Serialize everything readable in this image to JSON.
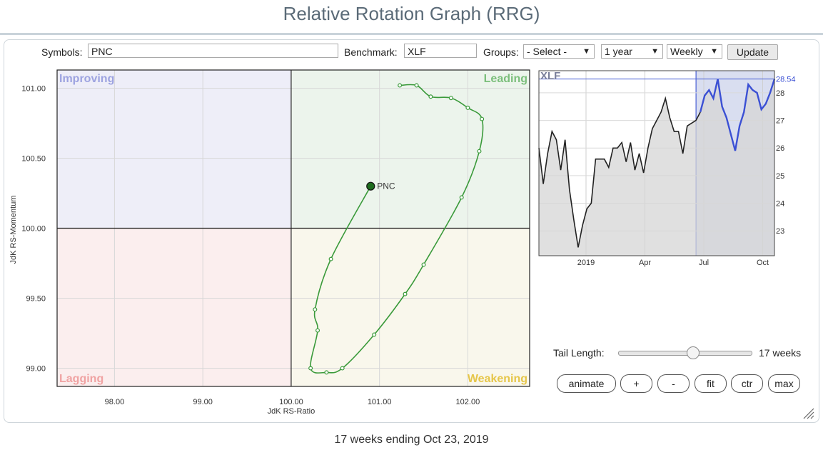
{
  "page": {
    "title": "Relative Rotation Graph (RRG)",
    "footer": "17 weeks ending Oct 23, 2019"
  },
  "controls": {
    "symbols_label": "Symbols:",
    "symbols_value": "PNC",
    "benchmark_label": "Benchmark:",
    "benchmark_value": "XLF",
    "groups_label": "Groups:",
    "groups_value": "- Select -",
    "period_value": "1 year",
    "frequency_value": "Weekly",
    "update_label": "Update"
  },
  "rrg": {
    "quadrants": {
      "improving": "Improving",
      "leading": "Leading",
      "lagging": "Lagging",
      "weakening": "Weakening"
    },
    "quadrant_colors": {
      "improving": "#eeeef8",
      "leading": "#ecf4ec",
      "lagging": "#fbeeee",
      "weakening": "#f9f7ec"
    },
    "quadrant_label_colors": {
      "improving": "#9da3e0",
      "leading": "#7cbf7c",
      "lagging": "#f0a3a3",
      "weakening": "#e6c64a"
    },
    "tail_color": "#3a9a3a",
    "xlabel": "JdK RS-Ratio",
    "ylabel": "JdK RS-Momentum",
    "x_ticks": [
      "98.00",
      "99.00",
      "100.00",
      "101.00",
      "102.00"
    ],
    "y_ticks": [
      "101.00",
      "100.50",
      "100.00",
      "99.50",
      "99.00"
    ],
    "series_label": "PNC"
  },
  "mini_chart": {
    "symbol": "XLF",
    "last_value": "28.54",
    "y_ticks": [
      "28",
      "27",
      "26",
      "25",
      "24",
      "23"
    ],
    "x_ticks": [
      "2019",
      "Apr",
      "Jul",
      "Oct"
    ]
  },
  "tail": {
    "label": "Tail Length:",
    "value_text": "17 weeks",
    "level_fraction": 0.56
  },
  "buttons": {
    "animate": "animate",
    "plus": "+",
    "minus": "-",
    "fit": "fit",
    "ctr": "ctr",
    "max": "max"
  },
  "chart_data": [
    {
      "type": "scatter",
      "title": "",
      "xlabel": "JdK RS-Ratio",
      "ylabel": "JdK RS-Momentum",
      "xlim": [
        97.35,
        102.7
      ],
      "ylim": [
        98.87,
        101.13
      ],
      "series": [
        {
          "name": "PNC",
          "x": [
            101.23,
            101.42,
            101.58,
            101.81,
            102.0,
            102.16,
            102.13,
            101.93,
            101.5,
            101.29,
            100.94,
            100.58,
            100.4,
            100.22,
            100.3,
            100.27,
            100.45,
            100.9
          ],
          "y": [
            101.02,
            101.02,
            100.94,
            100.93,
            100.86,
            100.78,
            100.55,
            100.22,
            99.74,
            99.53,
            99.24,
            99.0,
            98.97,
            99.0,
            99.27,
            99.42,
            99.78,
            100.3
          ]
        }
      ]
    },
    {
      "type": "line",
      "title": "XLF",
      "xlabel": "",
      "ylabel": "",
      "ylim": [
        22.1,
        28.8
      ],
      "highlight_from_index": 37,
      "x_ticks": [
        "2019",
        "Apr",
        "Jul",
        "Oct"
      ],
      "values": [
        26.0,
        24.7,
        25.8,
        26.6,
        26.3,
        25.2,
        26.3,
        24.5,
        23.4,
        22.4,
        23.2,
        23.8,
        24.0,
        25.6,
        25.6,
        25.6,
        25.3,
        26.0,
        26.0,
        26.2,
        25.5,
        26.2,
        25.2,
        25.8,
        25.1,
        26.0,
        26.7,
        27.0,
        27.3,
        27.8,
        27.1,
        26.6,
        26.6,
        25.8,
        26.8,
        26.9,
        27.0,
        27.3,
        27.9,
        28.1,
        27.8,
        28.5,
        27.5,
        27.1,
        26.5,
        25.9,
        26.8,
        27.3,
        28.3,
        28.1,
        28.0,
        27.4,
        27.6,
        28.0,
        28.5
      ]
    }
  ]
}
